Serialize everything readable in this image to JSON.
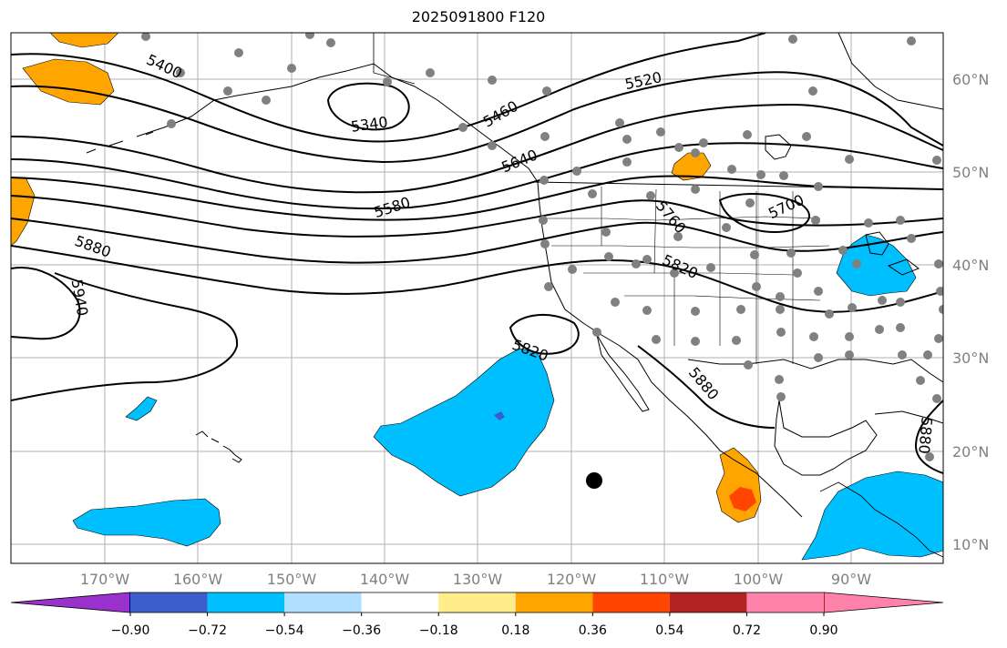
{
  "title": "2025091800 F120",
  "map": {
    "lat_labels": [
      "60°N",
      "50°N",
      "40°N",
      "30°N",
      "20°N",
      "10°N"
    ],
    "lon_labels": [
      "170°W",
      "160°W",
      "150°W",
      "140°W",
      "130°W",
      "120°W",
      "110°W",
      "100°W",
      "90°W"
    ],
    "contour_labels": [
      "5400",
      "5340",
      "5460",
      "5520",
      "5640",
      "5580",
      "5880",
      "5940",
      "5760",
      "5700",
      "5820",
      "5820",
      "5880",
      "5880"
    ],
    "colors": {
      "cyan": "#00bfff",
      "light_blue": "#b0e0ff",
      "orange": "#ffa500",
      "red_orange": "#ff4500",
      "purple_blue": "#3a5fcd",
      "station": "#808080",
      "gridline": "#b0b0b0"
    },
    "storm_marker": "black-dot"
  },
  "colorbar": {
    "ticks": [
      "−0.90",
      "−0.72",
      "−0.54",
      "−0.36",
      "−0.18",
      "0.18",
      "0.36",
      "0.54",
      "0.72",
      "0.90"
    ],
    "colors": [
      "#9932cc",
      "#00008b",
      "#3a5fcd",
      "#00bfff",
      "#b0e0ff",
      "#ffffff",
      "#ffec8b",
      "#ffa500",
      "#ff4500",
      "#b22222",
      "#ff82ab"
    ]
  }
}
